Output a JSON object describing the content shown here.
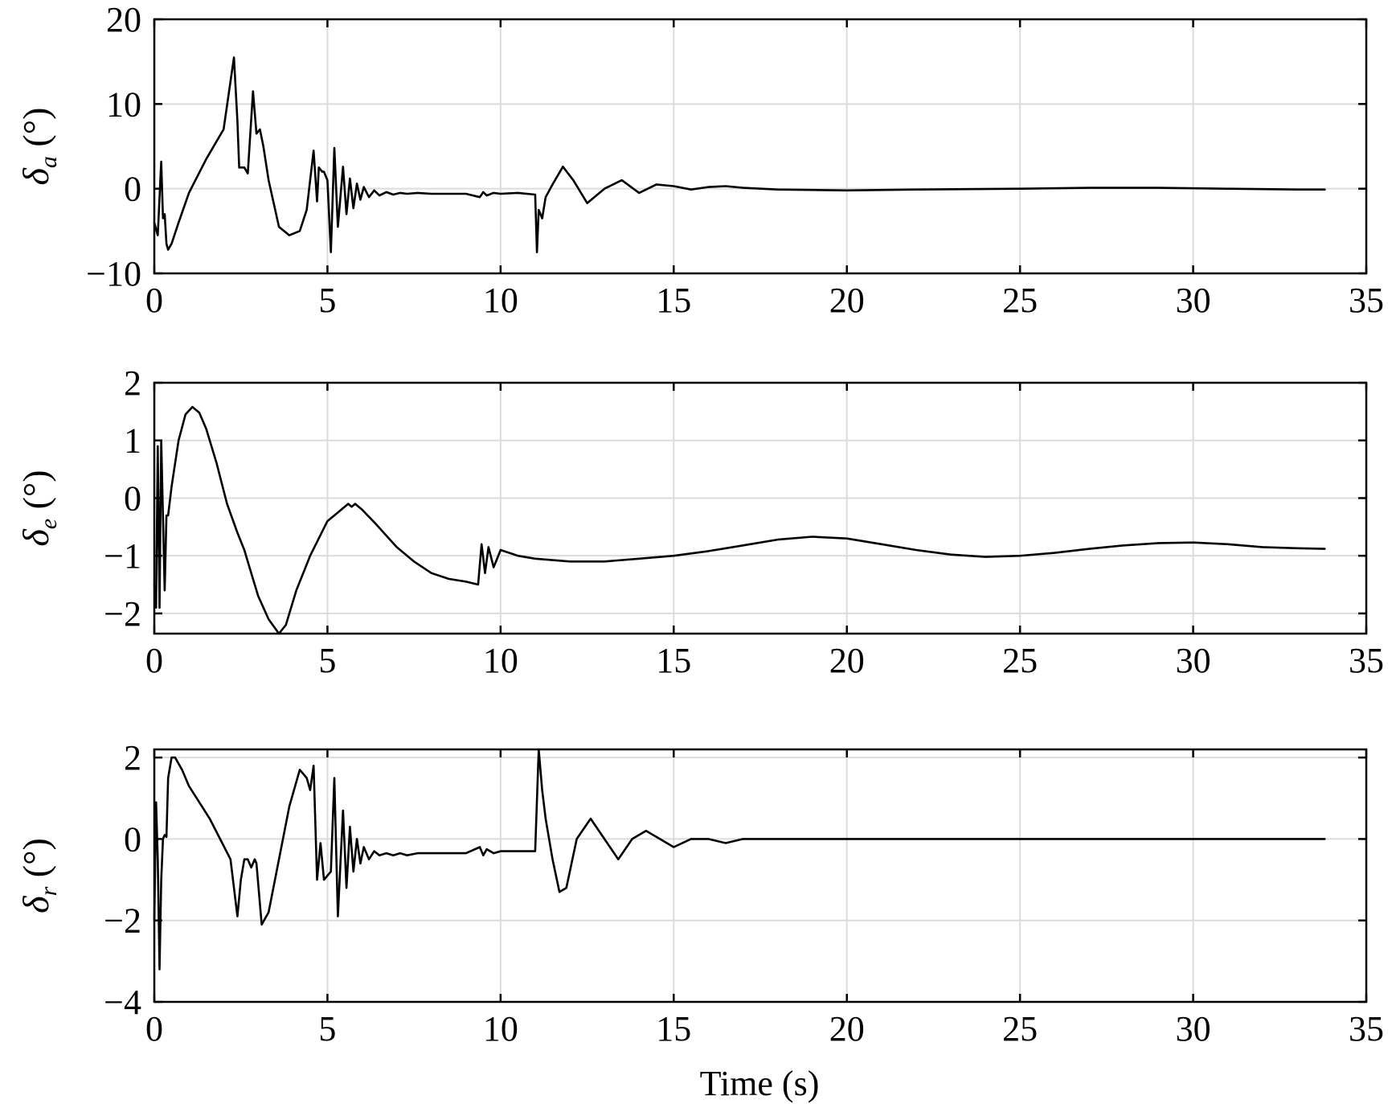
{
  "chart_data": [
    {
      "type": "line",
      "ylabel": {
        "symbol": "δ",
        "subscript": "a",
        "unit": "(°)"
      },
      "xlim": [
        0,
        35
      ],
      "ylim": [
        -10,
        20
      ],
      "xticks": [
        0,
        5,
        10,
        15,
        20,
        25,
        30,
        35
      ],
      "yticks": [
        -10,
        0,
        10,
        20
      ],
      "ytick_labels": [
        "−10",
        "0",
        "10",
        "20"
      ],
      "grid": true,
      "series": [
        {
          "x": [
            0.0,
            0.1,
            0.2,
            0.25,
            0.3,
            0.35,
            0.4,
            0.5,
            0.7,
            1.0,
            1.5,
            2.0,
            2.3,
            2.4,
            2.45,
            2.6,
            2.7,
            2.85,
            2.95,
            3.05,
            3.15,
            3.3,
            3.6,
            3.9,
            4.2,
            4.4,
            4.6,
            4.7,
            4.75,
            4.85,
            4.9,
            5.0,
            5.1,
            5.2,
            5.3,
            5.45,
            5.55,
            5.65,
            5.75,
            5.85,
            5.95,
            6.05,
            6.2,
            6.35,
            6.5,
            6.7,
            6.9,
            7.1,
            7.3,
            7.6,
            8.0,
            9.0,
            9.4,
            9.5,
            9.6,
            9.8,
            10.0,
            10.5,
            11.0,
            11.05,
            11.1,
            11.2,
            11.3,
            11.5,
            11.8,
            12.1,
            12.5,
            13.0,
            13.5,
            14.0,
            14.5,
            15.0,
            15.5,
            16.0,
            16.5,
            17.0,
            18.0,
            20.0,
            22.0,
            25.0,
            27.0,
            29.0,
            31.0,
            33.0,
            33.8
          ],
          "y": [
            -4.0,
            -5.5,
            3.2,
            -3.5,
            -3.0,
            -6.5,
            -7.2,
            -6.5,
            -4.0,
            -0.5,
            3.5,
            7.0,
            15.5,
            8.0,
            2.5,
            2.5,
            1.8,
            11.5,
            6.5,
            7.0,
            5.0,
            1.0,
            -4.5,
            -5.5,
            -5.0,
            -2.5,
            4.5,
            -1.5,
            2.5,
            2.0,
            2.0,
            1.0,
            -7.5,
            4.8,
            -4.5,
            2.6,
            -3.0,
            1.2,
            -2.3,
            0.6,
            -1.3,
            0.2,
            -1.0,
            -0.2,
            -0.8,
            -0.4,
            -0.7,
            -0.5,
            -0.6,
            -0.5,
            -0.6,
            -0.6,
            -1.0,
            -0.4,
            -0.8,
            -0.5,
            -0.6,
            -0.5,
            -0.7,
            -7.5,
            -2.5,
            -3.5,
            -1.0,
            0.5,
            2.6,
            1.0,
            -1.7,
            0.0,
            1.0,
            -0.5,
            0.5,
            0.3,
            -0.1,
            0.2,
            0.3,
            0.1,
            -0.1,
            -0.2,
            -0.1,
            0.0,
            0.1,
            0.1,
            0.0,
            -0.1,
            -0.1
          ]
        }
      ]
    },
    {
      "type": "line",
      "ylabel": {
        "symbol": "δ",
        "subscript": "e",
        "unit": "(°)"
      },
      "xlim": [
        0,
        35
      ],
      "ylim": [
        -2.35,
        2
      ],
      "xticks": [
        0,
        5,
        10,
        15,
        20,
        25,
        30,
        35
      ],
      "yticks": [
        -2,
        -1,
        0,
        1,
        2
      ],
      "ytick_labels": [
        "−2",
        "−1",
        "0",
        "1",
        "2"
      ],
      "grid": true,
      "series": [
        {
          "x": [
            0.0,
            0.05,
            0.1,
            0.15,
            0.2,
            0.3,
            0.35,
            0.4,
            0.5,
            0.7,
            0.9,
            1.1,
            1.3,
            1.5,
            1.8,
            2.1,
            2.4,
            2.6,
            2.8,
            3.0,
            3.3,
            3.6,
            3.8,
            4.1,
            4.5,
            5.0,
            5.4,
            5.6,
            5.7,
            5.8,
            6.0,
            6.4,
            7.0,
            7.5,
            8.0,
            8.5,
            9.0,
            9.35,
            9.45,
            9.55,
            9.65,
            9.8,
            10.0,
            10.5,
            11.0,
            12.0,
            13.0,
            14.0,
            15.0,
            16.0,
            17.0,
            18.0,
            19.0,
            20.0,
            21.0,
            22.0,
            23.0,
            24.0,
            25.0,
            26.0,
            27.0,
            28.0,
            29.0,
            30.0,
            31.0,
            32.0,
            33.0,
            33.8
          ],
          "y": [
            -1.5,
            -1.9,
            0.9,
            -1.9,
            1.0,
            -1.6,
            -0.3,
            -0.3,
            0.2,
            1.0,
            1.45,
            1.58,
            1.48,
            1.2,
            0.6,
            -0.1,
            -0.6,
            -0.9,
            -1.3,
            -1.7,
            -2.1,
            -2.35,
            -2.2,
            -1.6,
            -1.0,
            -0.4,
            -0.2,
            -0.1,
            -0.15,
            -0.1,
            -0.2,
            -0.45,
            -0.85,
            -1.1,
            -1.3,
            -1.4,
            -1.45,
            -1.5,
            -0.8,
            -1.3,
            -0.85,
            -1.2,
            -0.9,
            -1.0,
            -1.05,
            -1.1,
            -1.1,
            -1.05,
            -1.0,
            -0.92,
            -0.82,
            -0.72,
            -0.67,
            -0.7,
            -0.8,
            -0.9,
            -0.98,
            -1.02,
            -1.0,
            -0.95,
            -0.88,
            -0.82,
            -0.78,
            -0.77,
            -0.8,
            -0.85,
            -0.87,
            -0.88
          ]
        }
      ]
    },
    {
      "type": "line",
      "ylabel": {
        "symbol": "δ",
        "subscript": "r",
        "unit": "(°)"
      },
      "xlim": [
        0,
        35
      ],
      "ylim": [
        -4,
        2.2
      ],
      "xticks": [
        0,
        5,
        10,
        15,
        20,
        25,
        30,
        35
      ],
      "yticks": [
        -4,
        -2,
        0,
        2
      ],
      "ytick_labels": [
        "−4",
        "−2",
        "0",
        "2"
      ],
      "grid": true,
      "series": [
        {
          "x": [
            0.0,
            0.05,
            0.1,
            0.15,
            0.2,
            0.25,
            0.3,
            0.35,
            0.4,
            0.5,
            0.6,
            0.8,
            1.0,
            1.3,
            1.6,
            1.9,
            2.2,
            2.4,
            2.5,
            2.6,
            2.7,
            2.8,
            2.9,
            2.95,
            3.1,
            3.3,
            3.6,
            3.9,
            4.2,
            4.4,
            4.5,
            4.6,
            4.7,
            4.8,
            4.9,
            5.0,
            5.1,
            5.2,
            5.3,
            5.45,
            5.55,
            5.65,
            5.75,
            5.85,
            5.95,
            6.05,
            6.2,
            6.35,
            6.5,
            6.7,
            6.9,
            7.1,
            7.3,
            7.6,
            8.0,
            9.0,
            9.4,
            9.5,
            9.6,
            9.8,
            10.0,
            10.5,
            11.0,
            11.1,
            11.2,
            11.3,
            11.5,
            11.7,
            11.9,
            12.2,
            12.6,
            13.0,
            13.4,
            13.8,
            14.2,
            14.6,
            15.0,
            15.5,
            16.0,
            16.5,
            17.0,
            18.0,
            20.0,
            22.0,
            24.0,
            26.0,
            28.0,
            30.0,
            32.0,
            33.8
          ],
          "y": [
            -2.0,
            0.9,
            -0.5,
            -3.2,
            -1.0,
            0.0,
            0.1,
            0.05,
            1.5,
            2.0,
            2.0,
            1.7,
            1.3,
            0.9,
            0.5,
            0.0,
            -0.5,
            -1.9,
            -1.0,
            -0.5,
            -0.5,
            -0.7,
            -0.5,
            -0.6,
            -2.1,
            -1.8,
            -0.5,
            0.8,
            1.7,
            1.5,
            1.2,
            1.8,
            -1.0,
            -0.1,
            -1.0,
            -0.9,
            -0.8,
            1.5,
            -1.9,
            0.7,
            -1.2,
            0.3,
            -0.8,
            0.0,
            -0.6,
            -0.2,
            -0.5,
            -0.3,
            -0.4,
            -0.35,
            -0.4,
            -0.35,
            -0.4,
            -0.35,
            -0.35,
            -0.35,
            -0.2,
            -0.4,
            -0.25,
            -0.35,
            -0.3,
            -0.3,
            -0.3,
            2.2,
            1.2,
            0.5,
            -0.5,
            -1.3,
            -1.2,
            0.0,
            0.5,
            0.0,
            -0.5,
            0.0,
            0.2,
            0.0,
            -0.2,
            0.0,
            0.0,
            -0.1,
            0.0,
            0.0,
            0.0,
            0.0,
            0.0,
            0.0,
            0.0,
            0.0,
            0.0,
            0.0
          ]
        }
      ]
    }
  ],
  "xlabel": "Time (s)"
}
